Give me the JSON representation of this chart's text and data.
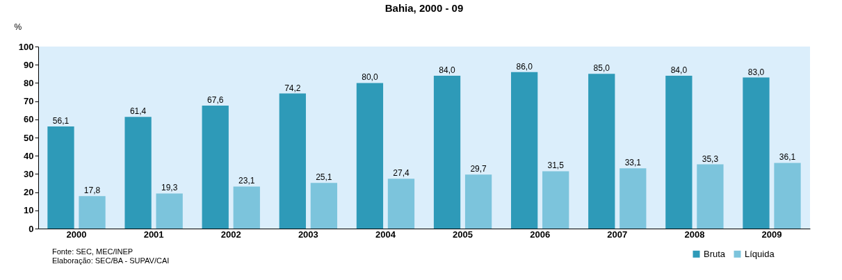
{
  "chart_data": {
    "type": "bar",
    "title": "Bahia, 2000 - 09",
    "ylabel": "%",
    "categories": [
      "2000",
      "2001",
      "2002",
      "2003",
      "2004",
      "2005",
      "2006",
      "2007",
      "2008",
      "2009"
    ],
    "series": [
      {
        "name": "Bruta",
        "color": "#2e9ab8",
        "values": [
          56.1,
          61.4,
          67.6,
          74.2,
          80.0,
          84.0,
          86.0,
          85.0,
          84.0,
          83.0
        ],
        "value_labels": [
          "56,1",
          "61,4",
          "67,6",
          "74,2",
          "80,0",
          "84,0",
          "86,0",
          "85,0",
          "84,0",
          "83,0"
        ]
      },
      {
        "name": "Líquida",
        "color": "#7cc4dc",
        "values": [
          17.8,
          19.3,
          23.1,
          25.1,
          27.4,
          29.7,
          31.5,
          33.1,
          35.3,
          36.1
        ],
        "value_labels": [
          "17,8",
          "19,3",
          "23,1",
          "25,1",
          "27,4",
          "29,7",
          "31,5",
          "33,1",
          "35,3",
          "36,1"
        ]
      }
    ],
    "ylim": [
      0,
      100
    ],
    "yticks": [
      0,
      10,
      20,
      30,
      40,
      50,
      60,
      70,
      80,
      90,
      100
    ],
    "legend": "bottom right",
    "annotations": [
      "Fonte: SEC, MEC/INEP",
      "Elaboração: SEC/BA - SUPAV/CAI"
    ]
  }
}
